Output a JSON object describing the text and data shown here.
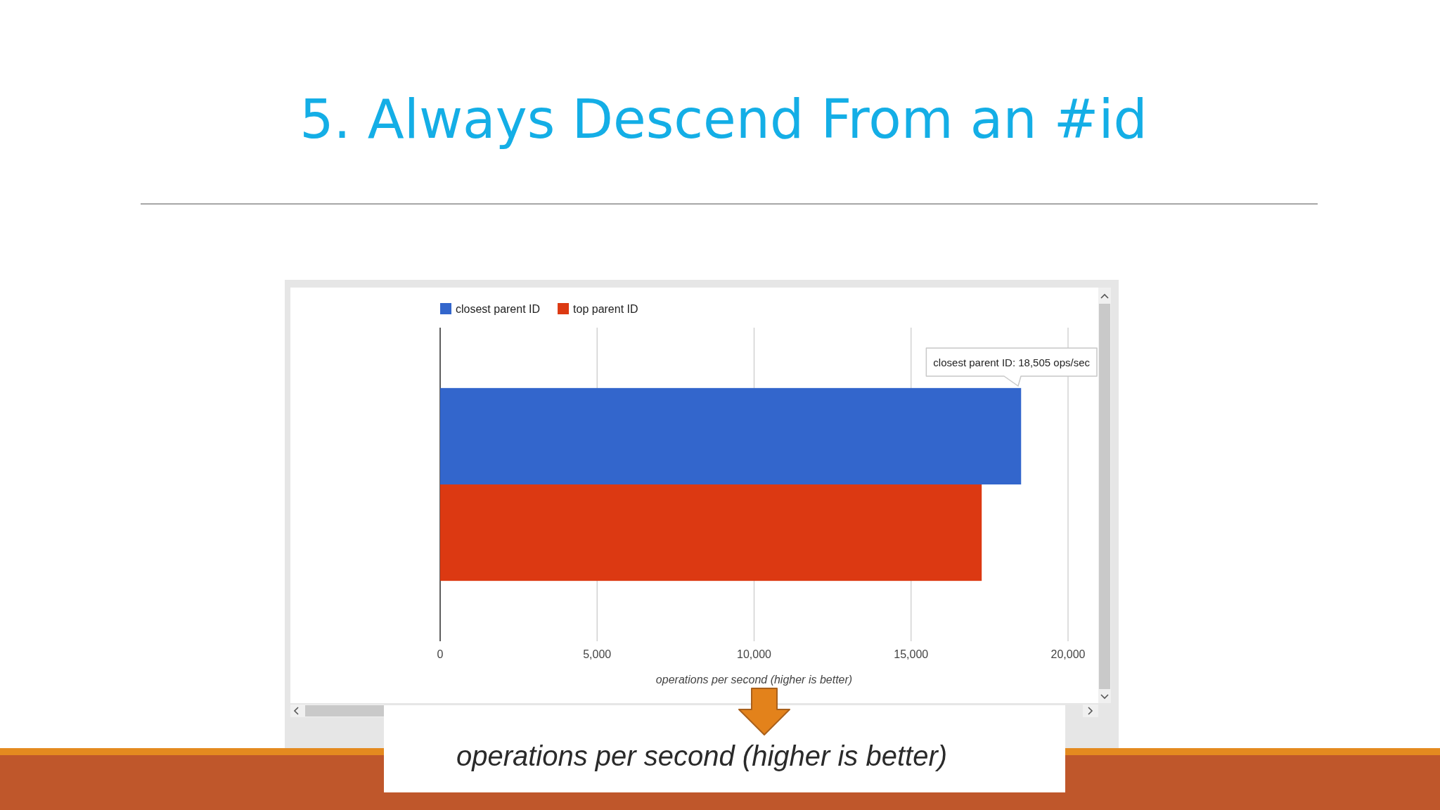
{
  "chart_data": {
    "type": "bar",
    "orientation": "horizontal",
    "title": "5. Always Descend From an #id",
    "xlabel": "operations per second (higher is better)",
    "categories": [
      null
    ],
    "series": [
      {
        "name": "closest parent ID",
        "color": "#3366cc",
        "values": [
          18505
        ]
      },
      {
        "name": "top parent ID",
        "color": "#dc3912",
        "values": [
          17250
        ]
      }
    ],
    "xlim": [
      0,
      20000
    ],
    "xticks": [
      0,
      {
        "value": 5000,
        "label": "5,000"
      },
      {
        "value": 10000,
        "label": "10,000"
      },
      {
        "value": 15000,
        "label": "15,000"
      },
      {
        "value": 20000,
        "label": "20,000"
      }
    ],
    "grid": "x",
    "legend": "top",
    "annotations": [
      "closest parent ID: 18,505 ops/sec",
      "operations per second (higher is better)"
    ]
  }
}
